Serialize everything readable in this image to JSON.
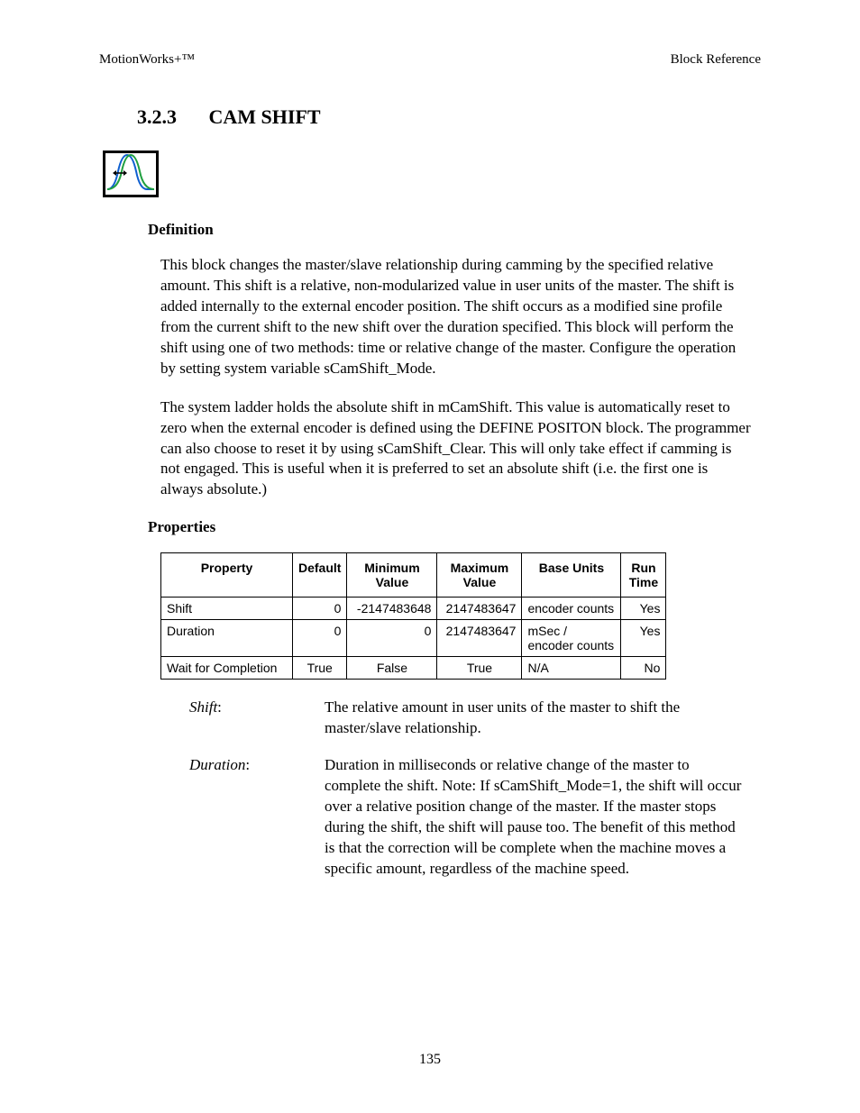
{
  "header": {
    "left": "MotionWorks+™",
    "right": "Block Reference"
  },
  "section": {
    "number": "3.2.3",
    "title": "CAM SHIFT"
  },
  "icon": {
    "name": "cam-shift-icon",
    "curve1_color": "#1060d0",
    "curve2_color": "#20a040",
    "arrow_color": "#000000",
    "border_color": "#000000",
    "background": "#ffffff"
  },
  "definition": {
    "heading": "Definition",
    "para1": "This block changes the master/slave relationship during camming by the specified relative amount.  This shift is a relative, non-modularized value in user units of the master.  The shift is added internally to the external encoder position.  The shift occurs as a modified sine profile from the current shift to the new shift over the duration specified.  This block will perform the shift using one of two methods: time or relative change of the master.  Configure the operation by setting system variable sCamShift_Mode.",
    "para2": "The system ladder holds the absolute shift in mCamShift.  This value is automatically reset to zero when the external encoder is defined using the DEFINE POSITON block.  The programmer can also choose to reset it by using sCamShift_Clear.  This will only take effect if camming is not engaged.  This is useful when it is preferred to set an absolute shift (i.e. the first one is always absolute.)"
  },
  "properties": {
    "heading": "Properties",
    "columns": [
      "Property",
      "Default",
      "Minimum Value",
      "Maximum Value",
      "Base Units",
      "Run Time"
    ],
    "rows": [
      {
        "property": "Shift",
        "default": "0",
        "min": "-2147483648",
        "max": "2147483647",
        "base": "encoder counts",
        "run": "Yes",
        "align": {
          "default": "right",
          "min": "right",
          "max": "right",
          "base": "left",
          "run": "right"
        }
      },
      {
        "property": "Duration",
        "default": "0",
        "min": "0",
        "max": "2147483647",
        "base": "mSec / encoder counts",
        "run": "Yes",
        "align": {
          "default": "right",
          "min": "right",
          "max": "right",
          "base": "left",
          "run": "right"
        }
      },
      {
        "property": "Wait for Completion",
        "default": "True",
        "min": "False",
        "max": "True",
        "base": "N/A",
        "run": "No",
        "align": {
          "default": "center",
          "min": "center",
          "max": "center",
          "base": "left",
          "run": "right"
        }
      }
    ]
  },
  "definitions_list": [
    {
      "term": "Shift",
      "desc": "The relative amount in user units of the master to shift the master/slave relationship."
    },
    {
      "term": "Duration",
      "desc": "Duration in milliseconds or relative change of the master to complete the shift.  Note: If sCamShift_Mode=1, the shift will occur over a relative position change of the master.  If the master stops during the shift, the shift will pause too.  The benefit of this method is that the correction will be complete when the machine moves a specific amount, regardless of the machine speed."
    }
  ],
  "page_number": "135"
}
